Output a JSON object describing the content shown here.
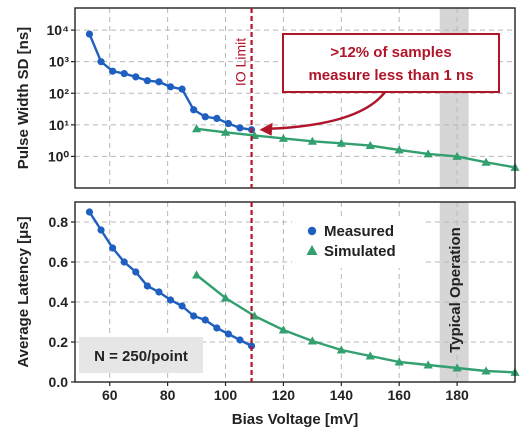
{
  "chart_data": [
    {
      "type": "line",
      "ylabel": "Pulse Width SD [ns]",
      "yscale": "log",
      "ylim_log10": [
        -1,
        4.7
      ],
      "xlim": [
        48,
        200
      ],
      "yticks": [
        {
          "v": 0,
          "label": "10⁰"
        },
        {
          "v": 1,
          "label": "10¹"
        },
        {
          "v": 2,
          "label": "10²"
        },
        {
          "v": 3,
          "label": "10³"
        },
        {
          "v": 4,
          "label": "10⁴"
        }
      ],
      "grid": true,
      "series": [
        {
          "name": "Measured",
          "color": "#1f5fbf",
          "marker": "circle",
          "x": [
            53,
            57,
            61,
            65,
            69,
            73,
            77,
            81,
            85,
            89,
            93,
            97,
            101,
            105,
            109
          ],
          "y": [
            7500,
            1000,
            500,
            420,
            330,
            250,
            230,
            160,
            135,
            30,
            18,
            16,
            11,
            8,
            7
          ]
        },
        {
          "name": "Simulated",
          "color": "#33a06f",
          "marker": "triangle",
          "x": [
            90,
            100,
            110,
            120,
            130,
            140,
            150,
            160,
            170,
            180,
            190,
            200
          ],
          "y": [
            7.5,
            5.8,
            4.6,
            3.7,
            3.0,
            2.6,
            2.2,
            1.6,
            1.2,
            1.0,
            0.65,
            0.45
          ]
        }
      ],
      "annotations": {
        "io_limit": {
          "x": 109,
          "text": "IO Limit"
        },
        "callout": {
          "line1": ">12% of samples",
          "line2": "measure less than 1 ns"
        }
      }
    },
    {
      "type": "line",
      "ylabel": "Average Latency [μs]",
      "xlabel": "Bias Voltage [mV]",
      "ylim": [
        0,
        0.9
      ],
      "xlim": [
        48,
        200
      ],
      "yticks": [
        0.0,
        0.2,
        0.4,
        0.6,
        0.8
      ],
      "ytick_labels": [
        "0.0",
        "0.2",
        "0.4",
        "0.6",
        "0.8"
      ],
      "xticks": [
        60,
        80,
        100,
        120,
        140,
        160,
        180
      ],
      "grid": true,
      "legend": "upper-center",
      "series": [
        {
          "name": "Measured",
          "color": "#1f5fbf",
          "marker": "circle",
          "x": [
            53,
            57,
            61,
            65,
            69,
            73,
            77,
            81,
            85,
            89,
            93,
            97,
            101,
            105,
            109
          ],
          "y": [
            0.85,
            0.76,
            0.67,
            0.6,
            0.55,
            0.48,
            0.45,
            0.41,
            0.38,
            0.33,
            0.31,
            0.27,
            0.24,
            0.21,
            0.18
          ]
        },
        {
          "name": "Simulated",
          "color": "#33a06f",
          "marker": "triangle",
          "x": [
            90,
            100,
            110,
            120,
            130,
            140,
            150,
            160,
            170,
            180,
            190,
            200
          ],
          "y": [
            0.535,
            0.42,
            0.33,
            0.26,
            0.205,
            0.16,
            0.13,
            0.1,
            0.085,
            0.07,
            0.055,
            0.048
          ]
        }
      ],
      "annotations": {
        "typical_band": {
          "x0": 174,
          "x1": 184,
          "text": "Typical Operation"
        },
        "sample_note": "N = 250/point"
      }
    }
  ]
}
